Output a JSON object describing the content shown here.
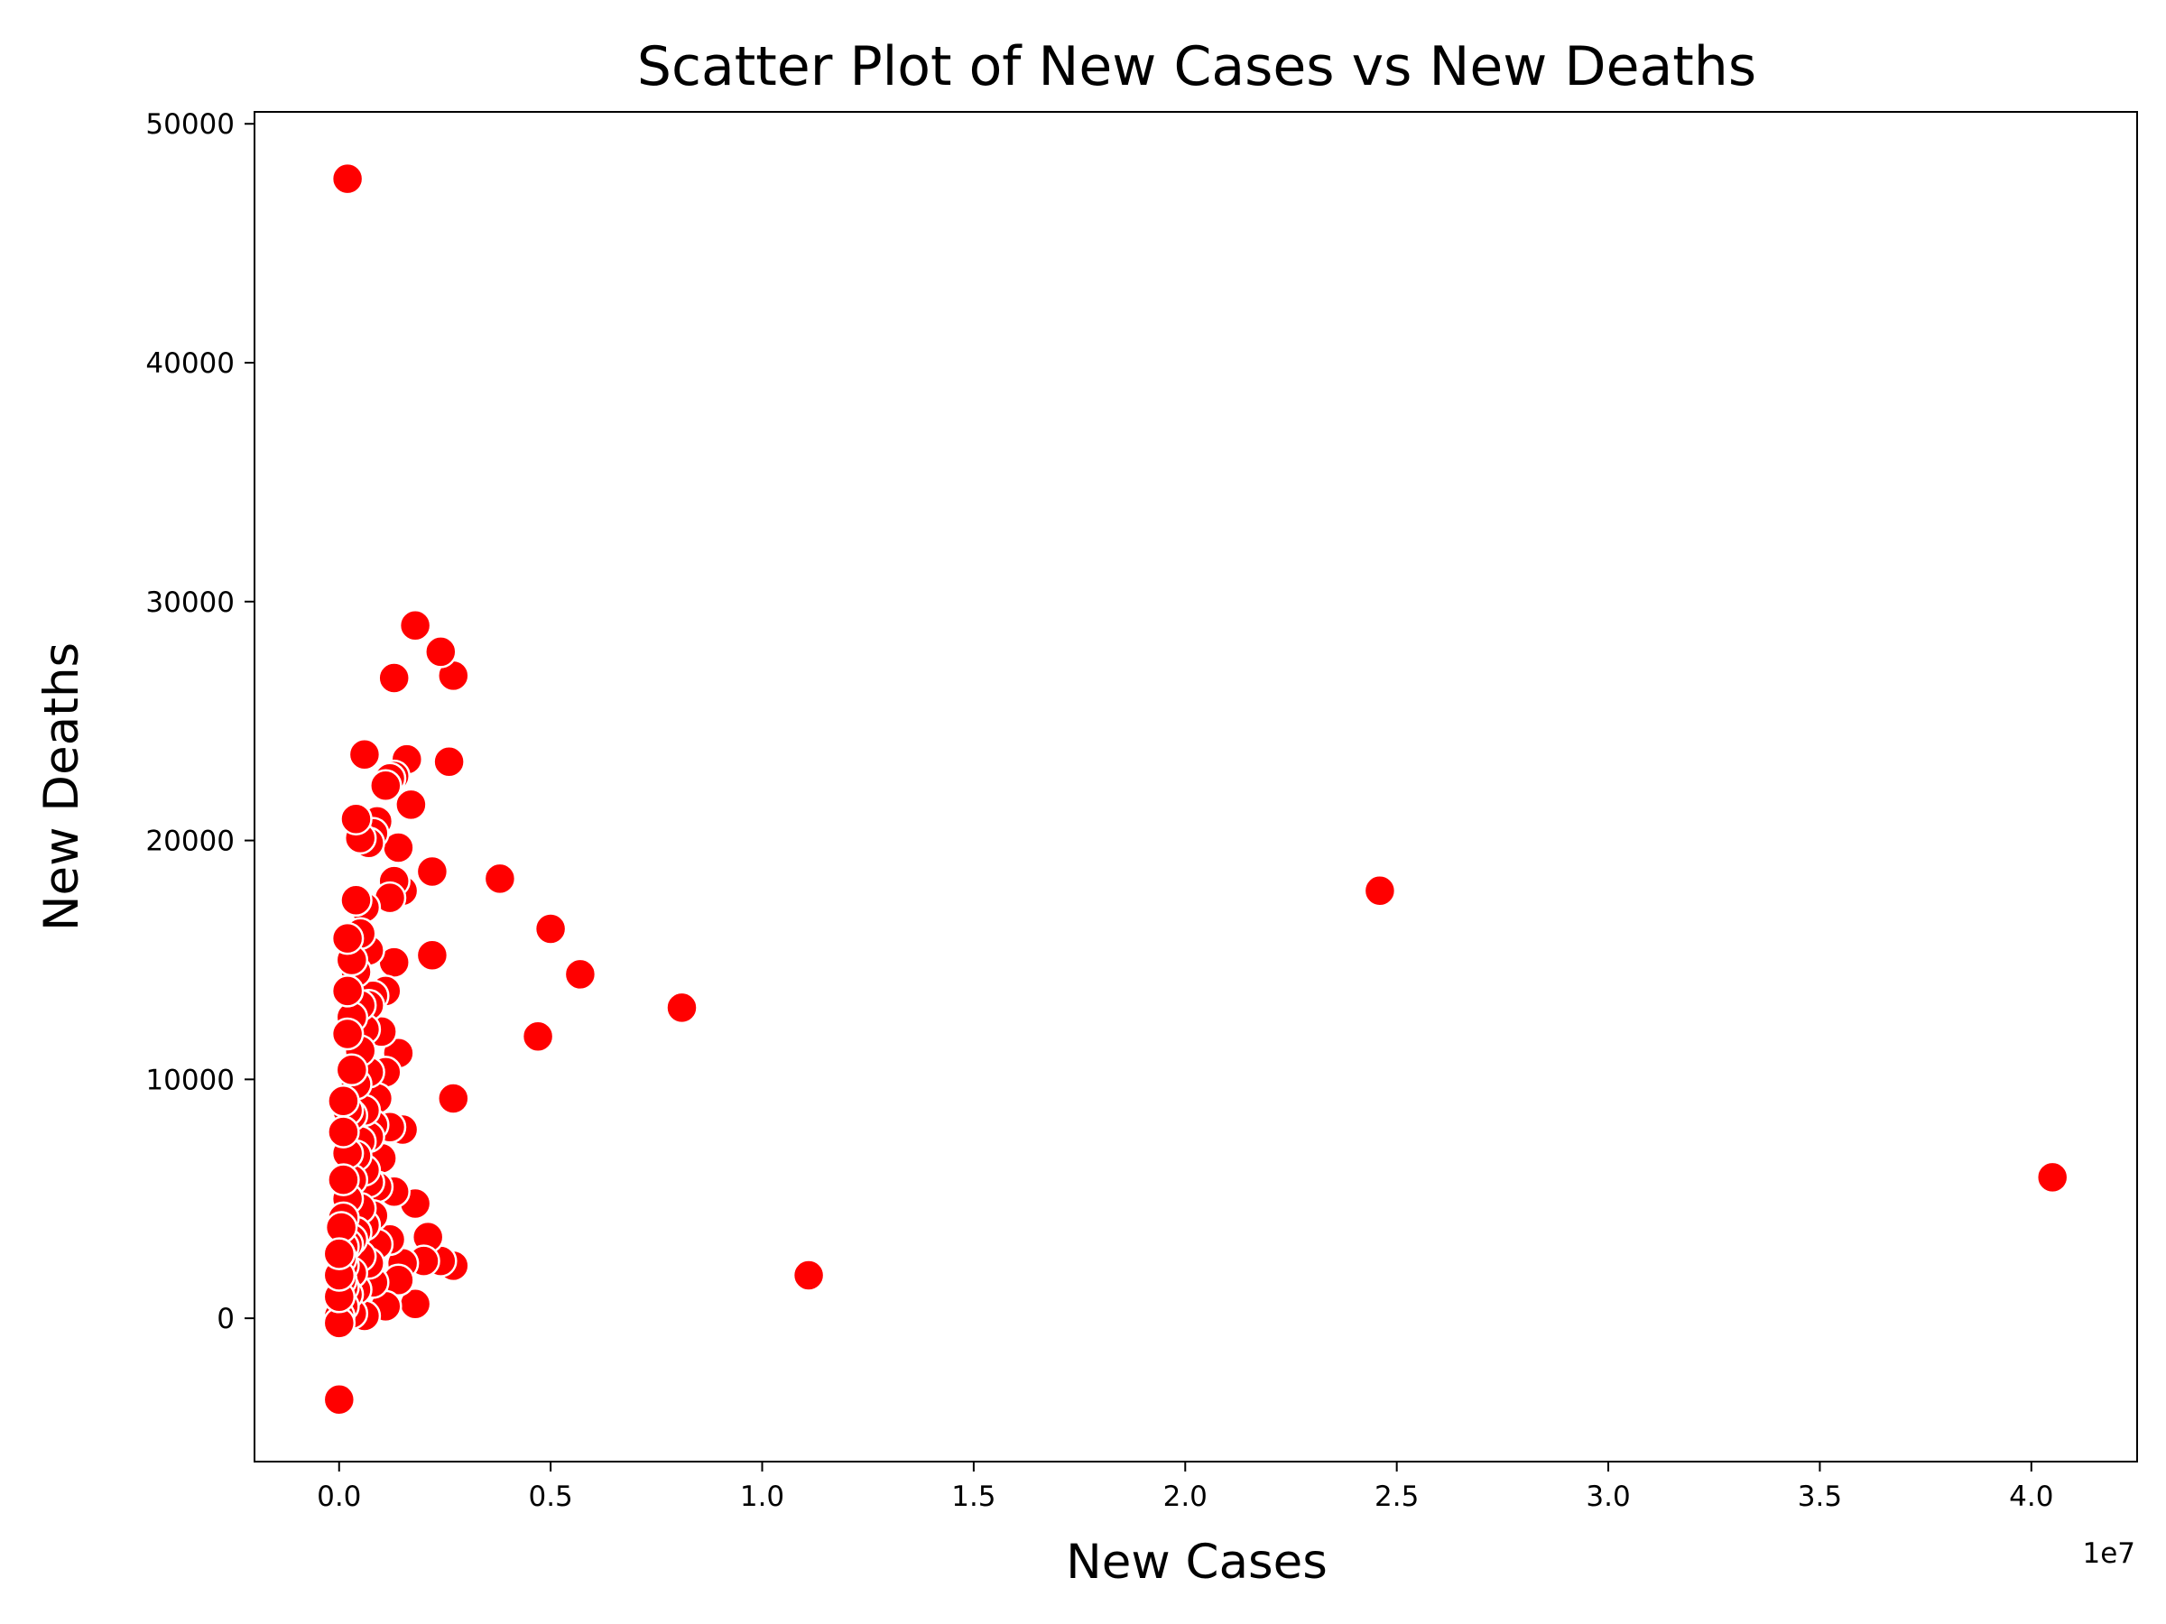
{
  "chart_data": {
    "type": "scatter",
    "title": "Scatter Plot of New Cases vs New Deaths",
    "xlabel": "New Cases",
    "ylabel": "New Deaths",
    "x_offset_label": "1e7",
    "xlim": [
      -2000000,
      42500000
    ],
    "ylim": [
      -6000,
      50500
    ],
    "x_ticks": [
      0,
      5000000,
      10000000,
      15000000,
      20000000,
      25000000,
      30000000,
      35000000,
      40000000
    ],
    "x_tick_labels": [
      "0.0",
      "0.5",
      "1.0",
      "1.5",
      "2.0",
      "2.5",
      "3.0",
      "3.5",
      "4.0"
    ],
    "y_ticks": [
      0,
      10000,
      20000,
      30000,
      40000,
      50000
    ],
    "y_tick_labels": [
      "0",
      "10000",
      "20000",
      "30000",
      "40000",
      "50000"
    ],
    "grid": false,
    "marker_color": "#ff0000",
    "marker_edge_color": "#ffffff",
    "points": [
      [
        200000,
        47700
      ],
      [
        40500000,
        5900
      ],
      [
        24600000,
        17900
      ],
      [
        11100000,
        1800
      ],
      [
        8100000,
        13000
      ],
      [
        5700000,
        14400
      ],
      [
        5000000,
        16300
      ],
      [
        4700000,
        11800
      ],
      [
        3800000,
        18400
      ],
      [
        2700000,
        26900
      ],
      [
        2700000,
        9200
      ],
      [
        2700000,
        2200
      ],
      [
        2600000,
        23300
      ],
      [
        2400000,
        27900
      ],
      [
        2400000,
        2400
      ],
      [
        2200000,
        18700
      ],
      [
        2200000,
        15200
      ],
      [
        2100000,
        3400
      ],
      [
        2000000,
        2400
      ],
      [
        1800000,
        29000
      ],
      [
        1800000,
        4800
      ],
      [
        1800000,
        600
      ],
      [
        1700000,
        21500
      ],
      [
        1600000,
        23400
      ],
      [
        1500000,
        17900
      ],
      [
        1500000,
        7900
      ],
      [
        1500000,
        2300
      ],
      [
        1400000,
        19700
      ],
      [
        1400000,
        11100
      ],
      [
        1400000,
        1600
      ],
      [
        1300000,
        26800
      ],
      [
        1300000,
        22700
      ],
      [
        1300000,
        14900
      ],
      [
        1300000,
        18300
      ],
      [
        1300000,
        5300
      ],
      [
        1200000,
        22600
      ],
      [
        1200000,
        17600
      ],
      [
        1200000,
        8000
      ],
      [
        1200000,
        3300
      ],
      [
        1100000,
        22300
      ],
      [
        1100000,
        13700
      ],
      [
        1100000,
        10300
      ],
      [
        1100000,
        500
      ],
      [
        1000000,
        12000
      ],
      [
        1000000,
        6700
      ],
      [
        900000,
        20800
      ],
      [
        900000,
        9200
      ],
      [
        900000,
        5500
      ],
      [
        900000,
        3100
      ],
      [
        800000,
        20300
      ],
      [
        800000,
        13500
      ],
      [
        800000,
        8100
      ],
      [
        800000,
        4300
      ],
      [
        800000,
        1500
      ],
      [
        700000,
        19900
      ],
      [
        700000,
        15400
      ],
      [
        700000,
        13100
      ],
      [
        700000,
        10300
      ],
      [
        700000,
        7600
      ],
      [
        700000,
        5700
      ],
      [
        700000,
        2300
      ],
      [
        600000,
        23600
      ],
      [
        600000,
        17200
      ],
      [
        600000,
        12100
      ],
      [
        600000,
        8700
      ],
      [
        600000,
        6200
      ],
      [
        600000,
        3900
      ],
      [
        600000,
        100
      ],
      [
        500000,
        20100
      ],
      [
        500000,
        16100
      ],
      [
        500000,
        13100
      ],
      [
        500000,
        11200
      ],
      [
        500000,
        7400
      ],
      [
        500000,
        4600
      ],
      [
        500000,
        2600
      ],
      [
        400000,
        20900
      ],
      [
        400000,
        17500
      ],
      [
        400000,
        14500
      ],
      [
        400000,
        9800
      ],
      [
        400000,
        6800
      ],
      [
        400000,
        3600
      ],
      [
        400000,
        1200
      ],
      [
        300000,
        15000
      ],
      [
        300000,
        12600
      ],
      [
        300000,
        10400
      ],
      [
        300000,
        8500
      ],
      [
        300000,
        5800
      ],
      [
        300000,
        3300
      ],
      [
        300000,
        1900
      ],
      [
        300000,
        200
      ],
      [
        200000,
        15900
      ],
      [
        200000,
        13700
      ],
      [
        200000,
        11900
      ],
      [
        200000,
        8700
      ],
      [
        200000,
        6900
      ],
      [
        200000,
        5000
      ],
      [
        200000,
        3100
      ],
      [
        200000,
        1000
      ],
      [
        100000,
        9100
      ],
      [
        100000,
        7800
      ],
      [
        100000,
        5800
      ],
      [
        100000,
        4200
      ],
      [
        100000,
        3000
      ],
      [
        100000,
        2200
      ],
      [
        100000,
        1300
      ],
      [
        100000,
        500
      ],
      [
        50000,
        3800
      ],
      [
        50000,
        2500
      ],
      [
        50000,
        1600
      ],
      [
        0,
        100
      ],
      [
        0,
        -200
      ],
      [
        0,
        -3400
      ],
      [
        0,
        900
      ],
      [
        0,
        1800
      ],
      [
        0,
        2700
      ]
    ]
  }
}
